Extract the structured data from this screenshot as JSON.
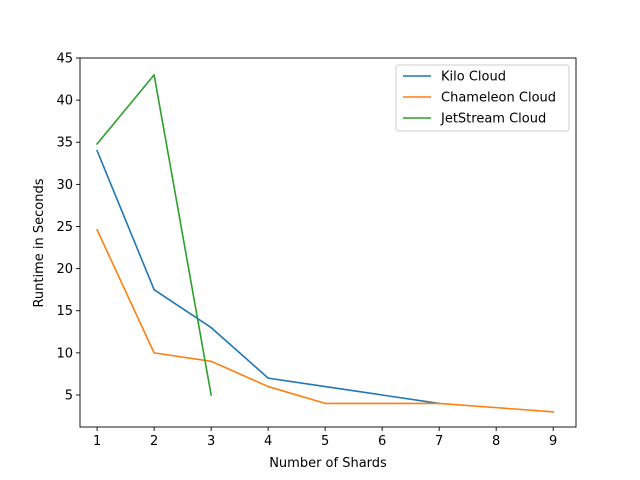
{
  "chart_data": {
    "type": "line",
    "title": "",
    "xlabel": "Number of Shards",
    "ylabel": "Runtime in Seconds",
    "xlim": [
      0.7,
      9.4
    ],
    "ylim": [
      1.2,
      45
    ],
    "xticks": [
      1,
      2,
      3,
      4,
      5,
      6,
      7,
      8,
      9
    ],
    "yticks": [
      5,
      10,
      15,
      20,
      25,
      30,
      35,
      40,
      45
    ],
    "grid": false,
    "legend_position": "top-right",
    "series": [
      {
        "name": "Kilo Cloud",
        "color": "#1f77b4",
        "x": [
          1,
          2,
          3,
          4,
          5,
          6,
          7
        ],
        "y": [
          34,
          17.5,
          13,
          7,
          6,
          5,
          4
        ]
      },
      {
        "name": "Chameleon Cloud",
        "color": "#ff7f0e",
        "x": [
          1,
          2,
          3,
          4,
          5,
          6,
          7,
          8,
          9
        ],
        "y": [
          24.6,
          10,
          9,
          6,
          4,
          4,
          4,
          3.5,
          3
        ]
      },
      {
        "name": "JetStream Cloud",
        "color": "#2ca02c",
        "x": [
          1,
          2,
          3
        ],
        "y": [
          34.8,
          43,
          5
        ]
      }
    ]
  }
}
